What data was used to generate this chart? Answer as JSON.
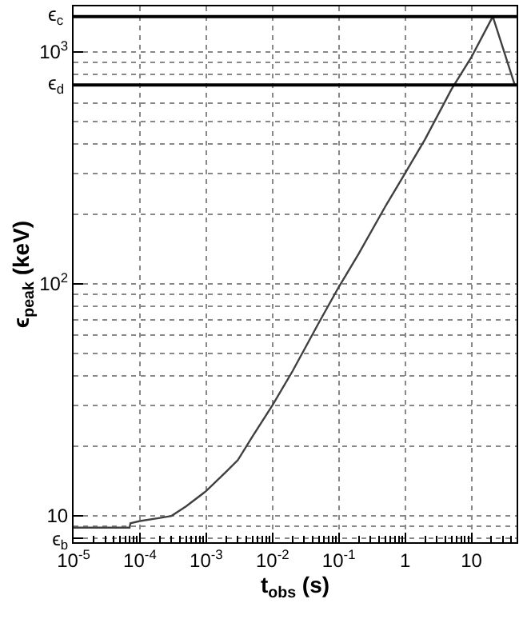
{
  "chart_data": {
    "type": "line",
    "xlabel": "t$_{obs}$ (s)",
    "ylabel": "ϵ$_{peak}$ (keV)",
    "x": [
      1e-05,
      7e-05,
      7.2e-05,
      0.0001,
      0.0002,
      0.0003,
      0.0005,
      0.001,
      0.002,
      0.003,
      0.005,
      0.01,
      0.02,
      0.05,
      0.1,
      0.2,
      0.5,
      1,
      2,
      5,
      10,
      21,
      45
    ],
    "series": [
      {
        "color": "#404040",
        "values": [
          8.9,
          8.9,
          9.3,
          9.5,
          9.8,
          10,
          11,
          12.8,
          15.5,
          17.4,
          22,
          30,
          42,
          68,
          97,
          135,
          215,
          300,
          420,
          690,
          950,
          1420,
          720
        ]
      }
    ],
    "log": "xy",
    "xlim": [
      1e-05,
      48
    ],
    "ylim": [
      7.7,
      1570
    ],
    "xticks": [
      {
        "value": 1e-05,
        "label": "10$^{-5}$"
      },
      {
        "value": 0.0001,
        "label": "10$^{-4}$"
      },
      {
        "value": 0.001,
        "label": "10$^{-3}$"
      },
      {
        "value": 0.01,
        "label": "10$^{-2}$"
      },
      {
        "value": 0.1,
        "label": "10$^{-1}$"
      },
      1,
      10,
      {
        "value": 2e-05,
        "label": null
      },
      {
        "value": 3e-05,
        "label": null
      },
      {
        "value": 4e-05,
        "label": null
      },
      {
        "value": 5e-05,
        "label": null
      },
      {
        "value": 6e-05,
        "label": null
      },
      {
        "value": 7e-05,
        "label": null
      },
      {
        "value": 8e-05,
        "label": null
      },
      {
        "value": 9e-05,
        "label": null
      },
      {
        "value": 0.0002,
        "label": null
      },
      {
        "value": 0.0003,
        "label": null
      },
      {
        "value": 0.0004,
        "label": null
      },
      {
        "value": 0.0005,
        "label": null
      },
      {
        "value": 0.0006,
        "label": null
      },
      {
        "value": 0.0007,
        "label": null
      },
      {
        "value": 0.0008,
        "label": null
      },
      {
        "value": 0.0009,
        "label": null
      },
      {
        "value": 0.002,
        "label": null
      },
      {
        "value": 0.003,
        "label": null
      },
      {
        "value": 0.004,
        "label": null
      },
      {
        "value": 0.005,
        "label": null
      },
      {
        "value": 0.006,
        "label": null
      },
      {
        "value": 0.007,
        "label": null
      },
      {
        "value": 0.008,
        "label": null
      },
      {
        "value": 0.009,
        "label": null
      },
      {
        "value": 0.02,
        "label": null
      },
      {
        "value": 0.03,
        "label": null
      },
      {
        "value": 0.04,
        "label": null
      },
      {
        "value": 0.05,
        "label": null
      },
      {
        "value": 0.06,
        "label": null
      },
      {
        "value": 0.07,
        "label": null
      },
      {
        "value": 0.08,
        "label": null
      },
      {
        "value": 0.09,
        "label": null
      },
      {
        "value": 0.2,
        "label": null
      },
      {
        "value": 0.3,
        "label": null
      },
      {
        "value": 0.4,
        "label": null
      },
      {
        "value": 0.5,
        "label": null
      },
      {
        "value": 0.6,
        "label": null
      },
      {
        "value": 0.7,
        "label": null
      },
      {
        "value": 0.8,
        "label": null
      },
      {
        "value": 0.9,
        "label": null
      },
      {
        "value": 2,
        "label": null
      },
      {
        "value": 3,
        "label": null
      },
      {
        "value": 4,
        "label": null
      },
      {
        "value": 5,
        "label": null
      },
      {
        "value": 6,
        "label": null
      },
      {
        "value": 7,
        "label": null
      },
      {
        "value": 8,
        "label": null
      },
      {
        "value": 9,
        "label": null
      },
      {
        "value": 20,
        "label": null
      },
      {
        "value": 30,
        "label": null
      },
      {
        "value": 40,
        "label": null
      }
    ],
    "yticks": [
      {
        "value": 8,
        "label": "ϵ$_{b}$"
      },
      10,
      {
        "value": 100,
        "label": "10$^{2}$"
      },
      {
        "value": 1000,
        "label": "10$^{3}$"
      },
      {
        "value": 9,
        "label": null
      },
      {
        "value": 20,
        "label": null
      },
      {
        "value": 30,
        "label": null
      },
      {
        "value": 40,
        "label": null
      },
      {
        "value": 50,
        "label": null
      },
      {
        "value": 60,
        "label": null
      },
      {
        "value": 70,
        "label": null
      },
      {
        "value": 80,
        "label": null
      },
      {
        "value": 90,
        "label": null
      },
      {
        "value": 200,
        "label": null
      },
      {
        "value": 300,
        "label": null
      },
      {
        "value": 400,
        "label": null
      },
      {
        "value": 500,
        "label": null
      },
      {
        "value": 600,
        "label": null
      },
      {
        "value": 800,
        "label": null
      },
      {
        "value": 900,
        "label": null
      }
    ],
    "ref_lines": [
      {
        "axis": "y",
        "value": 1420,
        "color": "#000000",
        "label": "ϵ$_{c}$"
      },
      {
        "axis": "y",
        "value": 720,
        "color": "#000000",
        "label": "ϵ$_{d}$"
      }
    ],
    "grid": true
  }
}
